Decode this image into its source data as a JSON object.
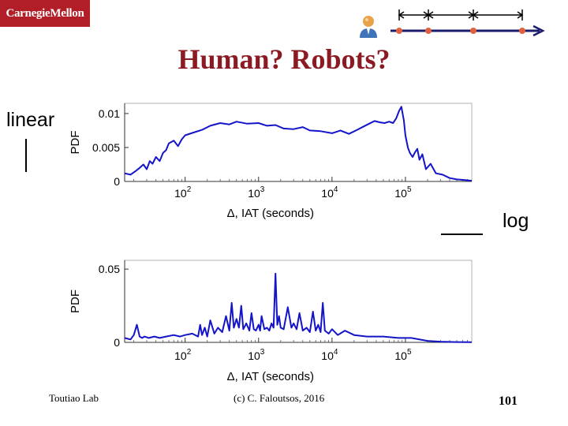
{
  "logo": {
    "text": "CarnegieMellon"
  },
  "title": "Human? Robots?",
  "labels": {
    "linear": "linear",
    "log": "log"
  },
  "footer": {
    "left": "Toutiao Lab",
    "center": "(c) C. Faloutsos, 2016",
    "page": "101"
  },
  "timeline": {
    "color": "#1c1c6e",
    "dot_color": "#e06040",
    "icon": "person-icon"
  },
  "chart_data": [
    {
      "type": "line",
      "x_scale": "log",
      "color": "#1414c8",
      "ylabel": "PDF",
      "xlabel": "Δ, IAT (seconds)",
      "xlim": [
        15,
        800000
      ],
      "ylim": [
        0,
        0.0115
      ],
      "y_ticks": [
        "0",
        "0.005",
        "0.01"
      ],
      "y_tick_values": [
        0,
        0.005,
        0.01
      ],
      "x_tick_exps": [
        "2",
        "3",
        "4",
        "5"
      ],
      "x_tick_values": [
        100,
        1000,
        10000,
        100000
      ],
      "grid": false,
      "x": [
        15,
        18,
        21,
        24,
        27,
        30,
        33,
        36,
        40,
        45,
        50,
        55,
        60,
        70,
        80,
        90,
        100,
        130,
        170,
        220,
        300,
        400,
        500,
        700,
        1000,
        1300,
        1700,
        2200,
        3000,
        4000,
        5000,
        7000,
        10000,
        13000,
        17000,
        22000,
        27000,
        32000,
        38000,
        45000,
        52000,
        60000,
        68000,
        75000,
        82000,
        88000,
        95000,
        100000,
        108000,
        115000,
        125000,
        135000,
        145000,
        155000,
        170000,
        190000,
        220000,
        260000,
        320000,
        400000,
        500000,
        650000,
        800000
      ],
      "y": [
        0.0012,
        0.001,
        0.0015,
        0.002,
        0.0025,
        0.0018,
        0.003,
        0.0026,
        0.0036,
        0.003,
        0.0042,
        0.0046,
        0.0056,
        0.006,
        0.0052,
        0.0062,
        0.0068,
        0.0072,
        0.0076,
        0.0082,
        0.0086,
        0.0084,
        0.0088,
        0.0085,
        0.0086,
        0.0082,
        0.0083,
        0.0078,
        0.0077,
        0.008,
        0.0075,
        0.0074,
        0.0071,
        0.0075,
        0.007,
        0.0076,
        0.0081,
        0.0085,
        0.0089,
        0.0087,
        0.0086,
        0.0088,
        0.0086,
        0.0093,
        0.0104,
        0.011,
        0.009,
        0.0068,
        0.005,
        0.0042,
        0.0036,
        0.0043,
        0.0048,
        0.0032,
        0.004,
        0.0018,
        0.0026,
        0.0012,
        0.001,
        0.0005,
        0.0003,
        0.0002,
        0.0001
      ]
    },
    {
      "type": "line",
      "x_scale": "log",
      "color": "#1414c8",
      "ylabel": "PDF",
      "xlabel": "Δ, IAT (seconds)",
      "xlim": [
        15,
        800000
      ],
      "ylim": [
        0,
        0.056
      ],
      "y_ticks": [
        "0",
        "0.05"
      ],
      "y_tick_values": [
        0,
        0.05
      ],
      "x_tick_exps": [
        "2",
        "3",
        "4",
        "5"
      ],
      "x_tick_values": [
        100,
        1000,
        10000,
        100000
      ],
      "grid": false,
      "x": [
        15,
        18,
        20,
        22,
        24,
        26,
        28,
        32,
        38,
        45,
        55,
        70,
        85,
        100,
        125,
        150,
        160,
        170,
        185,
        200,
        220,
        250,
        280,
        320,
        360,
        400,
        430,
        460,
        500,
        540,
        580,
        620,
        680,
        750,
        800,
        860,
        920,
        1000,
        1050,
        1100,
        1200,
        1300,
        1400,
        1500,
        1600,
        1700,
        1800,
        1900,
        2000,
        2200,
        2500,
        2800,
        3000,
        3300,
        3600,
        4000,
        4500,
        5000,
        5500,
        6000,
        6500,
        7000,
        7500,
        8000,
        9000,
        10000,
        12000,
        15000,
        20000,
        30000,
        50000,
        80000,
        120000,
        200000,
        300000,
        500000,
        800000
      ],
      "y": [
        0.003,
        0.002,
        0.005,
        0.012,
        0.004,
        0.003,
        0.004,
        0.003,
        0.004,
        0.003,
        0.004,
        0.005,
        0.004,
        0.005,
        0.006,
        0.004,
        0.012,
        0.005,
        0.01,
        0.004,
        0.015,
        0.006,
        0.01,
        0.007,
        0.018,
        0.008,
        0.027,
        0.01,
        0.016,
        0.01,
        0.025,
        0.009,
        0.013,
        0.008,
        0.02,
        0.009,
        0.008,
        0.012,
        0.008,
        0.018,
        0.009,
        0.01,
        0.008,
        0.013,
        0.01,
        0.047,
        0.012,
        0.018,
        0.01,
        0.009,
        0.024,
        0.01,
        0.013,
        0.009,
        0.02,
        0.008,
        0.01,
        0.007,
        0.021,
        0.008,
        0.012,
        0.007,
        0.027,
        0.008,
        0.006,
        0.009,
        0.005,
        0.008,
        0.005,
        0.004,
        0.004,
        0.003,
        0.003,
        0.001,
        0.0005,
        0.0002,
        0.0001
      ]
    }
  ]
}
